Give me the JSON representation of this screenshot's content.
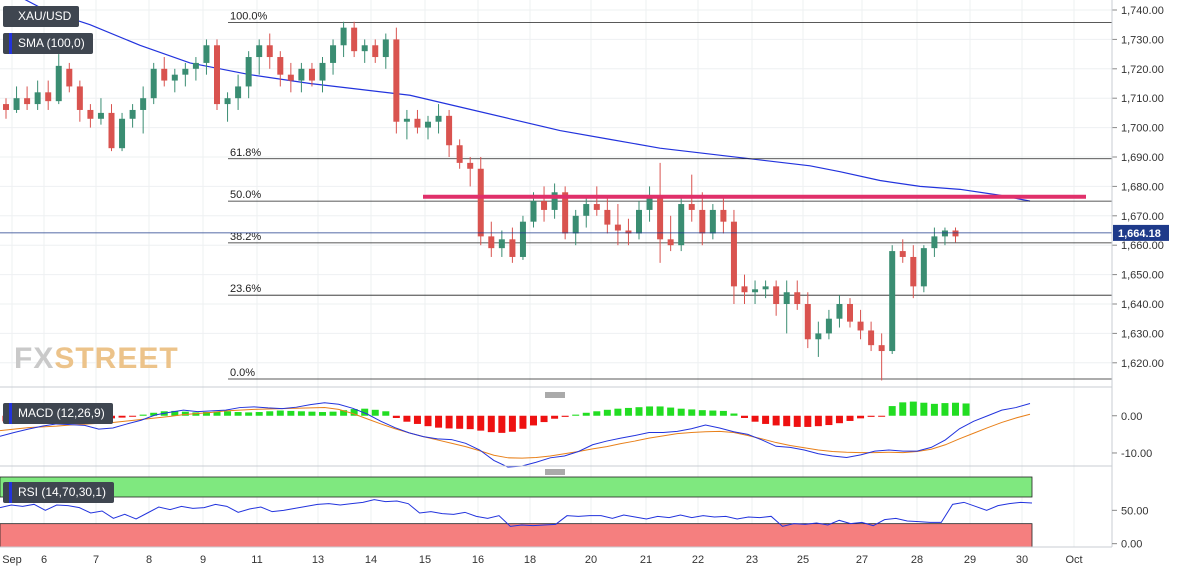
{
  "symbol": "XAU/USD",
  "indicators": {
    "sma_label": "SMA (100,0)",
    "macd_label": "MACD (12,26,9)",
    "rsi_label": "RSI (14,70,30,1)"
  },
  "watermark": {
    "fx": "FX",
    "street": "STREET"
  },
  "colors": {
    "up": "#3a8d72",
    "down": "#d9534f",
    "sma": "#2233dd",
    "resistance": "#e0306a",
    "macd_line": "#2233dd",
    "signal_line": "#e8801a",
    "hist_pos": "#22dd22",
    "hist_neg": "#ee1111",
    "rsi_overbought": "#7fe87f",
    "rsi_oversold": "#f57f7f",
    "rsi_line": "#2233dd"
  },
  "chart_data": {
    "type": "candlestick",
    "y_ticks": [
      "1,740.00",
      "1,730.00",
      "1,720.00",
      "1,710.00",
      "1,700.00",
      "1,690.00",
      "1,680.00",
      "1,670.00",
      "1,660.00",
      "1,650.00",
      "1,640.00",
      "1,630.00",
      "1,620.00"
    ],
    "ylim": [
      1613,
      1743
    ],
    "x_labels": [
      "Sep",
      "6",
      "7",
      "8",
      "9",
      "11",
      "13",
      "14",
      "15",
      "16",
      "18",
      "20",
      "21",
      "22",
      "23",
      "25",
      "27",
      "28",
      "29",
      "30",
      "Oct"
    ],
    "current_price": {
      "label": "1,664.18",
      "value": 1664.18
    },
    "fibonacci": [
      {
        "label": "100.0%",
        "value": 1735.8
      },
      {
        "label": "61.8%",
        "value": 1689.4
      },
      {
        "label": "50.0%",
        "value": 1675.0
      },
      {
        "label": "38.2%",
        "value": 1660.8
      },
      {
        "label": "23.6%",
        "value": 1643.0
      },
      {
        "label": "0.0%",
        "value": 1614.5
      }
    ],
    "resistance_level": 1676.5,
    "candles": [
      [
        1708,
        1710,
        1703,
        1706
      ],
      [
        1706,
        1714,
        1705,
        1710
      ],
      [
        1710,
        1714,
        1706,
        1708
      ],
      [
        1708,
        1716,
        1706,
        1712
      ],
      [
        1712,
        1716,
        1706,
        1709
      ],
      [
        1709,
        1725,
        1708,
        1721
      ],
      [
        1720,
        1722,
        1712,
        1714
      ],
      [
        1714,
        1716,
        1702,
        1706
      ],
      [
        1706,
        1708,
        1700,
        1703
      ],
      [
        1703,
        1710,
        1701,
        1705
      ],
      [
        1705,
        1708,
        1692,
        1693
      ],
      [
        1693,
        1705,
        1692,
        1703
      ],
      [
        1703,
        1708,
        1700,
        1706
      ],
      [
        1706,
        1714,
        1698,
        1710
      ],
      [
        1710,
        1722,
        1708,
        1720
      ],
      [
        1720,
        1724,
        1714,
        1716
      ],
      [
        1716,
        1720,
        1712,
        1718
      ],
      [
        1718,
        1722,
        1714,
        1720
      ],
      [
        1720,
        1724,
        1716,
        1722
      ],
      [
        1722,
        1730,
        1718,
        1728
      ],
      [
        1728,
        1730,
        1706,
        1708
      ],
      [
        1708,
        1712,
        1702,
        1710
      ],
      [
        1710,
        1718,
        1706,
        1714
      ],
      [
        1714,
        1726,
        1710,
        1724
      ],
      [
        1724,
        1730,
        1718,
        1728
      ],
      [
        1728,
        1732,
        1720,
        1724
      ],
      [
        1724,
        1726,
        1714,
        1718
      ],
      [
        1718,
        1722,
        1712,
        1716
      ],
      [
        1716,
        1722,
        1712,
        1720
      ],
      [
        1720,
        1722,
        1714,
        1716
      ],
      [
        1716,
        1724,
        1712,
        1722
      ],
      [
        1722,
        1730,
        1718,
        1728
      ],
      [
        1728,
        1736,
        1724,
        1734
      ],
      [
        1734,
        1736,
        1724,
        1726
      ],
      [
        1726,
        1730,
        1722,
        1728
      ],
      [
        1728,
        1730,
        1722,
        1724
      ],
      [
        1724,
        1732,
        1720,
        1730
      ],
      [
        1730,
        1734,
        1698,
        1702
      ],
      [
        1702,
        1706,
        1696,
        1703
      ],
      [
        1703,
        1706,
        1698,
        1700
      ],
      [
        1700,
        1704,
        1696,
        1702
      ],
      [
        1702,
        1708,
        1698,
        1704
      ],
      [
        1704,
        1706,
        1690,
        1694
      ],
      [
        1694,
        1696,
        1686,
        1688
      ],
      [
        1688,
        1690,
        1680,
        1686
      ],
      [
        1686,
        1690,
        1660,
        1663
      ],
      [
        1663,
        1668,
        1656,
        1659
      ],
      [
        1659,
        1665,
        1656,
        1662
      ],
      [
        1662,
        1666,
        1654,
        1656
      ],
      [
        1656,
        1670,
        1655,
        1668
      ],
      [
        1668,
        1678,
        1666,
        1675
      ],
      [
        1675,
        1680,
        1668,
        1672
      ],
      [
        1672,
        1681,
        1669,
        1678
      ],
      [
        1678,
        1680,
        1662,
        1664
      ],
      [
        1664,
        1672,
        1660,
        1670
      ],
      [
        1670,
        1677,
        1666,
        1674
      ],
      [
        1674,
        1680,
        1670,
        1672
      ],
      [
        1672,
        1676,
        1664,
        1667
      ],
      [
        1667,
        1674,
        1660,
        1665
      ],
      [
        1665,
        1669,
        1660,
        1664
      ],
      [
        1664,
        1675,
        1662,
        1672
      ],
      [
        1672,
        1680,
        1668,
        1676
      ],
      [
        1676,
        1688,
        1654,
        1662
      ],
      [
        1662,
        1670,
        1658,
        1660
      ],
      [
        1660,
        1676,
        1658,
        1674
      ],
      [
        1674,
        1684,
        1668,
        1672
      ],
      [
        1672,
        1678,
        1660,
        1664
      ],
      [
        1664,
        1674,
        1662,
        1672
      ],
      [
        1672,
        1676,
        1664,
        1668
      ],
      [
        1668,
        1672,
        1640,
        1646
      ],
      [
        1646,
        1650,
        1640,
        1644
      ],
      [
        1644,
        1648,
        1640,
        1645
      ],
      [
        1645,
        1648,
        1642,
        1646
      ],
      [
        1646,
        1648,
        1636,
        1640
      ],
      [
        1640,
        1648,
        1630,
        1644
      ],
      [
        1644,
        1648,
        1638,
        1640
      ],
      [
        1640,
        1644,
        1625,
        1628
      ],
      [
        1628,
        1634,
        1622,
        1630
      ],
      [
        1630,
        1638,
        1628,
        1635
      ],
      [
        1635,
        1643,
        1632,
        1640
      ],
      [
        1640,
        1642,
        1632,
        1634
      ],
      [
        1634,
        1638,
        1628,
        1631
      ],
      [
        1631,
        1634,
        1624,
        1626
      ],
      [
        1626,
        1630,
        1614,
        1624
      ],
      [
        1624,
        1660,
        1623,
        1658
      ],
      [
        1658,
        1662,
        1654,
        1656
      ],
      [
        1656,
        1660,
        1642,
        1646
      ],
      [
        1646,
        1660,
        1644,
        1659
      ],
      [
        1659,
        1666,
        1656,
        1663
      ],
      [
        1663,
        1666,
        1660,
        1665
      ],
      [
        1665,
        1666,
        1661,
        1663
      ]
    ],
    "sma_100": [
      [
        0,
        1748
      ],
      [
        45,
        1740
      ],
      [
        90,
        1735
      ],
      [
        140,
        1728
      ],
      [
        190,
        1722
      ],
      [
        250,
        1718
      ],
      [
        310,
        1715
      ],
      [
        360,
        1713
      ],
      [
        410,
        1711
      ],
      [
        460,
        1707
      ],
      [
        510,
        1703
      ],
      [
        560,
        1699
      ],
      [
        610,
        1696
      ],
      [
        660,
        1693
      ],
      [
        710,
        1691
      ],
      [
        760,
        1689
      ],
      [
        810,
        1687
      ],
      [
        840,
        1685
      ],
      [
        880,
        1682
      ],
      [
        920,
        1680
      ],
      [
        960,
        1679
      ],
      [
        1000,
        1677
      ],
      [
        1030,
        1675
      ]
    ],
    "macd": {
      "ylim": [
        -13.5,
        4.5
      ],
      "y_ticks": [
        "0.00",
        "-10.00"
      ],
      "histogram": [
        -1.5,
        -1.4,
        -1.2,
        -1,
        -0.8,
        -0.5,
        -0.3,
        -0.2,
        -0.3,
        -0.5,
        -0.7,
        -0.5,
        -0.2,
        0.3,
        0.8,
        1.2,
        1.3,
        1.1,
        0.9,
        1,
        1.1,
        1.2,
        1,
        0.9,
        1,
        1.2,
        1.4,
        1.3,
        1.2,
        1.1,
        1,
        1.1,
        1.5,
        1.8,
        1.9,
        1.6,
        1.2,
        -0.6,
        -1.6,
        -2.2,
        -2.8,
        -3.2,
        -3.4,
        -3.5,
        -3.6,
        -4,
        -4.4,
        -4.6,
        -4.3,
        -3.5,
        -2.6,
        -1.7,
        -0.8,
        -0.3,
        0.3,
        0.8,
        1.2,
        1.6,
        1.9,
        2.1,
        2.3,
        2.5,
        2.5,
        2.2,
        1.9,
        1.7,
        1.5,
        1.4,
        1.3,
        0.6,
        -0.6,
        -1.6,
        -2.2,
        -2.6,
        -2.8,
        -3,
        -3,
        -2.8,
        -2.5,
        -2,
        -1.4,
        -0.7,
        -0.3,
        -0.2,
        2.6,
        3.6,
        3.8,
        3.5,
        3.2,
        3.4,
        3.5,
        3.3
      ],
      "macd_line": [
        -5.5,
        -4.5,
        -3.6,
        -2.8,
        -2.2,
        -2.4,
        -2.6,
        -3.6,
        -3.3,
        -2.2,
        -1.2,
        0.2,
        0.9,
        1.5,
        1.1,
        1.3,
        1.5,
        2.2,
        2.4,
        2.1,
        1.9,
        2.3,
        3,
        3.5,
        3.1,
        2,
        0.5,
        -1.5,
        -3.2,
        -4.6,
        -5.6,
        -6.2,
        -6.4,
        -7.4,
        -9.2,
        -12,
        -13.8,
        -13.5,
        -12.5,
        -11.3,
        -10.8,
        -9.6,
        -7.8,
        -6.8,
        -6,
        -5.3,
        -4.5,
        -4.5,
        -4.2,
        -3.5,
        -2.5,
        -3.3,
        -4.3,
        -5,
        -6.5,
        -8.2,
        -8.5,
        -9.2,
        -10.2,
        -10.8,
        -11.2,
        -10.5,
        -9.5,
        -9.2,
        -9.5,
        -9.5,
        -8.5,
        -6.5,
        -3.5,
        -1.5,
        0,
        1.5,
        2.2,
        3.3
      ],
      "signal_line": [
        -4,
        -3.6,
        -3.2,
        -3,
        -2.8,
        -2.5,
        -2.3,
        -2,
        -1.8,
        -1.4,
        -1,
        -0.6,
        -0.2,
        0.3,
        0.6,
        0.9,
        1.3,
        1.5,
        1.7,
        1.8,
        1.9,
        2,
        2.1,
        2.2,
        1.7,
        0.6,
        -0.8,
        -2.2,
        -3.5,
        -4.6,
        -5.6,
        -6.5,
        -7.4,
        -8.3,
        -9.4,
        -10.6,
        -11.3,
        -11.4,
        -11.2,
        -10.8,
        -10.2,
        -9.6,
        -8.9,
        -8.3,
        -7.5,
        -6.8,
        -6,
        -5.4,
        -4.8,
        -4.5,
        -4.3,
        -4.2,
        -4.5,
        -5.3,
        -6.2,
        -7.2,
        -8,
        -8.6,
        -9.2,
        -9.6,
        -9.8,
        -9.9,
        -9.9,
        -9.8,
        -9.9,
        -9.6,
        -9,
        -7.8,
        -6.2,
        -4.7,
        -3.2,
        -1.8,
        -0.6,
        0.4
      ]
    },
    "rsi": {
      "ylim": [
        -5,
        100
      ],
      "y_ticks": [
        "50.00",
        "0.00"
      ],
      "overbought": 70,
      "oversold": 30,
      "values": [
        54,
        58,
        56,
        59,
        50,
        58,
        57,
        54,
        46,
        49,
        38,
        44,
        37,
        46,
        55,
        51,
        56,
        53,
        54,
        59,
        56,
        47,
        52,
        55,
        48,
        50,
        53,
        56,
        59,
        60,
        58,
        60,
        62,
        66,
        63,
        64,
        60,
        46,
        48,
        45,
        44,
        47,
        41,
        38,
        42,
        26,
        28,
        27,
        28,
        29,
        42,
        41,
        42,
        42,
        38,
        43,
        40,
        37,
        41,
        39,
        43,
        39,
        42,
        40,
        41,
        37,
        40,
        39,
        41,
        26,
        30,
        29,
        31,
        28,
        35,
        30,
        32,
        27,
        36,
        38,
        34,
        33,
        32,
        32,
        59,
        62,
        56,
        50,
        57,
        60,
        62,
        61
      ]
    }
  }
}
